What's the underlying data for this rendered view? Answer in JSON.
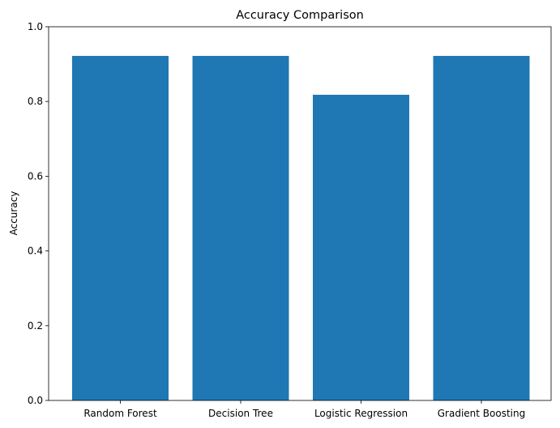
{
  "chart_data": {
    "type": "bar",
    "title": "Accuracy Comparison",
    "xlabel": "",
    "ylabel": "Accuracy",
    "categories": [
      "Random Forest",
      "Decision Tree",
      "Logistic Regression",
      "Gradient Boosting"
    ],
    "values": [
      0.922,
      0.922,
      0.818,
      0.922
    ],
    "ylim": [
      0.0,
      1.0
    ],
    "yticks": [
      0.0,
      0.2,
      0.4,
      0.6,
      0.8,
      1.0
    ],
    "ytick_labels": [
      "0.0",
      "0.2",
      "0.4",
      "0.6",
      "0.8",
      "1.0"
    ],
    "grid": false,
    "bar_color": "#1f77b4"
  }
}
